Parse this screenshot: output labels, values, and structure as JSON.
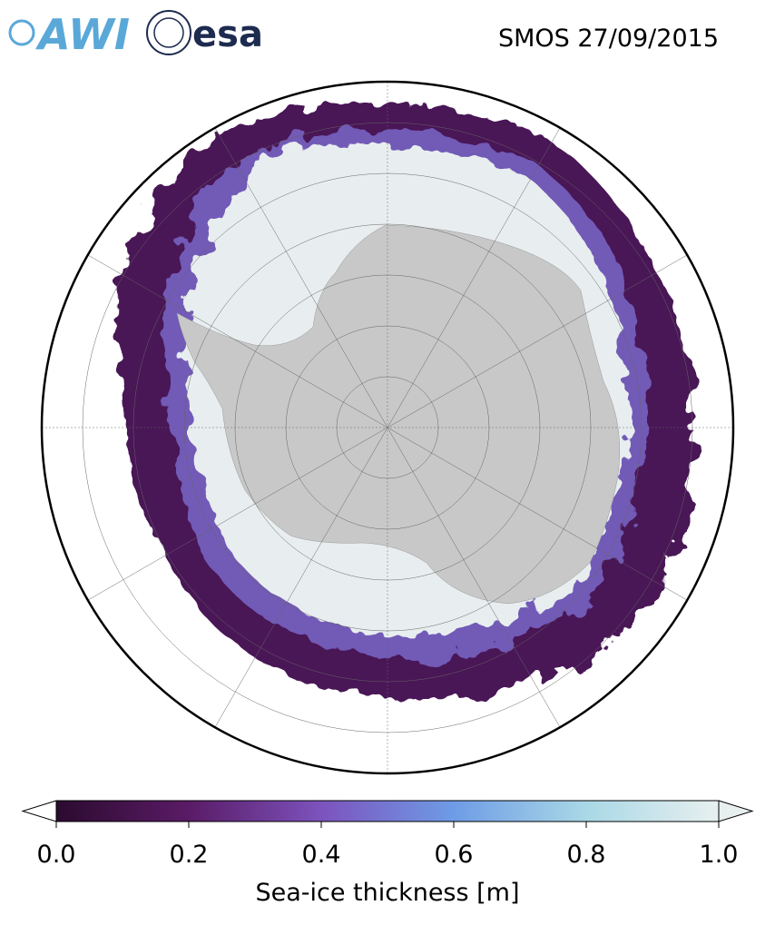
{
  "header": {
    "logos": [
      "AWI",
      "esa"
    ],
    "title": "SMOS 27/09/2015"
  },
  "colorbar": {
    "label": "Sea-ice thickness [m]",
    "lim": [
      0,
      1
    ],
    "ticks": [
      {
        "value": 0,
        "label": "0.0"
      },
      0.2,
      0.4,
      0.6,
      0.8,
      {
        "value": 1,
        "label": "1.0"
      }
    ],
    "colors": [
      "#2b0b2f",
      "#5a1b66",
      "#7c53bd",
      "#6e9ce6",
      "#a9d8e6",
      "#e8f0ef"
    ]
  }
}
